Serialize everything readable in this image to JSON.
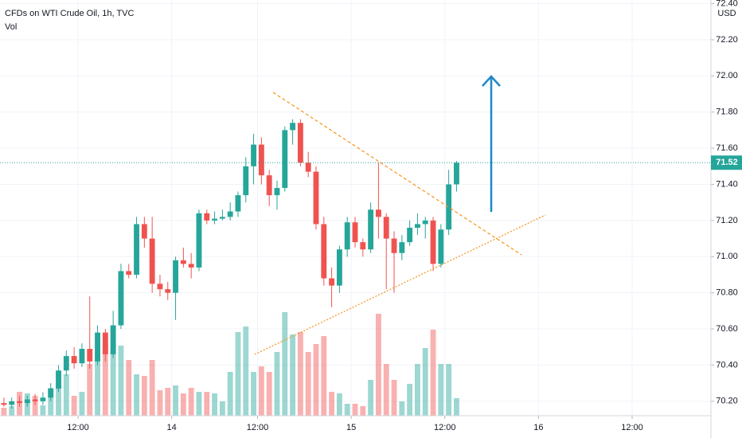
{
  "chart_data": {
    "type": "candlestick",
    "title": "CFDs on WTI Crude Oil, 1h, TVC",
    "volume_label": "Vol",
    "currency": "USD",
    "open": [
      70.19,
      70.18,
      70.2,
      70.19,
      70.21,
      70.2,
      70.22,
      70.27,
      70.37,
      70.45,
      70.41,
      70.49,
      70.42,
      70.58,
      70.46,
      70.62,
      70.92,
      70.9,
      71.18,
      71.1,
      70.85,
      70.82,
      70.8,
      70.98,
      70.96,
      70.94,
      71.24,
      71.2,
      71.21,
      71.22,
      71.25,
      71.34,
      71.5,
      71.62,
      71.45,
      71.34,
      71.38,
      71.7,
      71.74,
      71.52,
      71.47,
      71.18,
      70.88,
      70.84,
      71.04,
      71.19,
      71.08,
      71.04,
      71.26,
      71.22,
      71.1,
      71.02,
      71.08,
      71.16,
      71.18,
      71.2,
      70.96,
      71.15,
      71.4
    ],
    "high": [
      70.22,
      70.22,
      70.23,
      70.23,
      70.24,
      70.25,
      70.3,
      70.4,
      70.48,
      70.5,
      70.52,
      70.78,
      70.62,
      70.6,
      70.7,
      70.96,
      70.96,
      71.22,
      71.22,
      71.22,
      70.9,
      70.86,
      71.0,
      71.05,
      71.02,
      71.26,
      71.26,
      71.25,
      71.26,
      71.3,
      71.36,
      71.55,
      71.68,
      71.66,
      71.48,
      71.42,
      71.72,
      71.76,
      71.76,
      71.58,
      71.5,
      71.22,
      70.94,
      71.06,
      71.22,
      71.22,
      71.1,
      71.3,
      71.52,
      71.24,
      71.14,
      71.12,
      71.2,
      71.24,
      71.22,
      71.22,
      71.18,
      71.48,
      71.53
    ],
    "low": [
      70.17,
      70.16,
      70.17,
      70.17,
      70.18,
      70.18,
      70.2,
      70.25,
      70.34,
      70.38,
      70.39,
      70.38,
      70.4,
      70.42,
      70.44,
      70.6,
      70.88,
      70.88,
      71.05,
      70.8,
      70.78,
      70.76,
      70.65,
      70.94,
      70.88,
      70.92,
      71.18,
      71.18,
      71.2,
      71.2,
      71.22,
      71.3,
      71.4,
      71.4,
      71.28,
      71.26,
      71.36,
      71.62,
      71.5,
      71.44,
      71.15,
      70.84,
      70.72,
      70.8,
      71.0,
      71.05,
      71.0,
      71.02,
      71.1,
      70.82,
      70.8,
      70.98,
      71.06,
      71.12,
      71.1,
      70.92,
      70.94,
      71.12,
      71.36
    ],
    "close": [
      70.18,
      70.2,
      70.19,
      70.21,
      70.2,
      70.22,
      70.27,
      70.37,
      70.45,
      70.41,
      70.49,
      70.42,
      70.58,
      70.46,
      70.62,
      70.92,
      70.9,
      71.18,
      71.1,
      70.85,
      70.82,
      70.8,
      70.98,
      70.96,
      70.94,
      71.24,
      71.2,
      71.21,
      71.22,
      71.25,
      71.34,
      71.5,
      71.62,
      71.45,
      71.34,
      71.38,
      71.7,
      71.74,
      71.52,
      71.47,
      71.18,
      70.88,
      70.84,
      71.04,
      71.19,
      71.08,
      71.04,
      71.26,
      71.22,
      71.1,
      71.02,
      71.08,
      71.16,
      71.18,
      71.2,
      70.96,
      71.15,
      71.4,
      71.52
    ],
    "volume": [
      10,
      12,
      30,
      28,
      25,
      13,
      35,
      55,
      52,
      25,
      30,
      65,
      75,
      90,
      85,
      88,
      70,
      52,
      50,
      70,
      32,
      35,
      38,
      28,
      35,
      30,
      30,
      28,
      18,
      55,
      105,
      112,
      55,
      62,
      55,
      80,
      130,
      102,
      105,
      80,
      90,
      100,
      30,
      28,
      15,
      15,
      12,
      45,
      128,
      65,
      45,
      18,
      40,
      65,
      85,
      108,
      65,
      65,
      22
    ],
    "volume_ylim": [
      0,
      522
    ],
    "up_color": "#26a69a",
    "down_color": "#ef5350",
    "last_price": 71.52,
    "xlim": [
      -0.5,
      90.6
    ],
    "xticks": [
      {
        "value": 9.5,
        "label": "12:00"
      },
      {
        "value": 21.5,
        "label": "14"
      },
      {
        "value": 32.5,
        "label": "12:00"
      },
      {
        "value": 44.5,
        "label": "15"
      },
      {
        "value": 56.5,
        "label": "12:00"
      },
      {
        "value": 68.5,
        "label": "16"
      },
      {
        "value": 80.5,
        "label": "12:00"
      }
    ],
    "ylim": [
      70.12,
      72.42
    ],
    "yticks": [
      {
        "value": 70.2,
        "label": "70.20"
      },
      {
        "value": 70.4,
        "label": "70.40"
      },
      {
        "value": 70.6,
        "label": "70.60"
      },
      {
        "value": 70.8,
        "label": "70.80"
      },
      {
        "value": 71.0,
        "label": "71.00"
      },
      {
        "value": 71.2,
        "label": "71.20"
      },
      {
        "value": 71.4,
        "label": "71.40"
      },
      {
        "value": 71.6,
        "label": "71.60"
      },
      {
        "value": 71.8,
        "label": "71.80"
      },
      {
        "value": 72.0,
        "label": "72.00"
      },
      {
        "value": 72.2,
        "label": "72.20"
      },
      {
        "value": 72.4,
        "label": "72.40"
      }
    ],
    "grid": true
  }
}
